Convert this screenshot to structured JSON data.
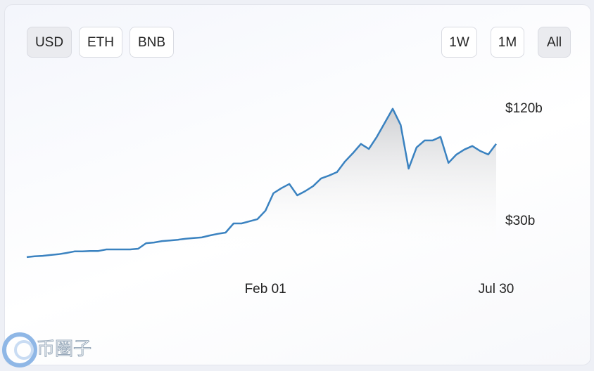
{
  "buttons": {
    "currency": [
      "USD",
      "ETH",
      "BNB"
    ],
    "range": [
      "1W",
      "1M",
      "All"
    ],
    "active_currency": 0,
    "active_range": 2
  },
  "watermark": "币圈子",
  "chart_data": {
    "type": "line",
    "log_scale": true,
    "color": "#3a82c0",
    "grid": false,
    "categories": [
      null,
      null,
      null,
      null,
      null,
      null,
      null,
      null,
      null,
      null,
      null,
      null,
      null,
      null,
      null,
      null,
      null,
      null,
      null,
      null,
      null,
      null,
      null,
      null,
      null,
      null,
      null,
      null,
      null,
      null,
      "Feb 01",
      null,
      null,
      null,
      null,
      null,
      null,
      null,
      null,
      null,
      null,
      null,
      null,
      null,
      null,
      null,
      null,
      null,
      null,
      null,
      null,
      null,
      null,
      null,
      null,
      null,
      null,
      null,
      null,
      "Jul 30"
    ],
    "values": [
      19.3,
      19.5,
      19.6,
      19.8,
      20.0,
      20.3,
      20.7,
      20.7,
      20.8,
      20.8,
      21.2,
      21.2,
      21.2,
      21.2,
      21.4,
      22.9,
      23.1,
      23.5,
      23.7,
      23.9,
      24.2,
      24.4,
      24.6,
      25.2,
      25.7,
      26.1,
      29.2,
      29.2,
      30.0,
      30.8,
      34.2,
      42.4,
      45.1,
      47.5,
      41.3,
      43.5,
      46.3,
      50.9,
      52.7,
      55.0,
      62.7,
      69.5,
      77.8,
      73.2,
      84.9,
      100.9,
      120,
      98.3,
      57.4,
      74.5,
      81.2,
      81.2,
      84.9,
      61.6,
      68.3,
      72.6,
      75.8,
      71.3,
      68.3,
      77.8
    ],
    "ylim": [
      15,
      150
    ],
    "yticks": [
      {
        "value": 120,
        "label": "$120b"
      },
      {
        "value": 30,
        "label": "$30b"
      }
    ]
  }
}
